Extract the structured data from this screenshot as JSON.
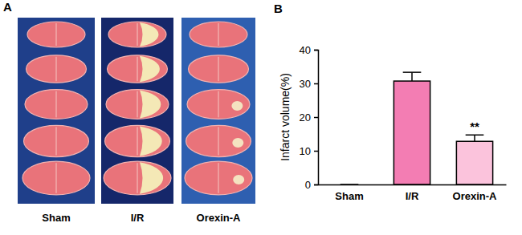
{
  "chart_data": {
    "type": "bar",
    "panel_label": "B",
    "y_label": "Infarct volume(%)",
    "categories": [
      "Sham",
      "I/R",
      "Orexin-A"
    ],
    "values": [
      0,
      30.7,
      12.8
    ],
    "errors": [
      0,
      2.6,
      1.9
    ],
    "colors": [
      "#f37db3",
      "#f37db3",
      "#fbc3dc"
    ],
    "significance": [
      null,
      null,
      "**"
    ],
    "ylim": [
      0,
      40
    ],
    "yticks": [
      0,
      10,
      20,
      30,
      40
    ],
    "grid": false
  },
  "figure": {
    "panel_label": "A",
    "groups": [
      "Sham",
      "I/R",
      "Orexin-A"
    ]
  }
}
